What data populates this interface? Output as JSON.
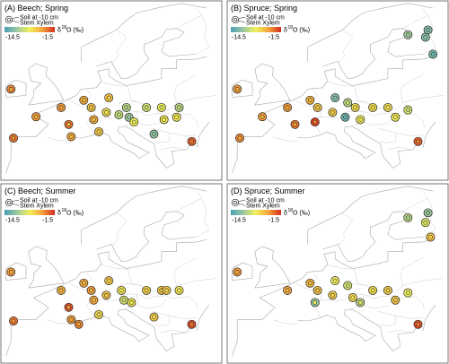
{
  "legend": {
    "soil_label": "Soil at -10 cm",
    "xylem_label": "Stem Xylem",
    "scale_min": "-14.5",
    "scale_max": "-1.5",
    "isotope_symbol": "δ",
    "isotope_mass": "18",
    "isotope_unit": "O (‰)",
    "colormap": [
      "#4a9fb8",
      "#9cc9a0",
      "#f0f05a",
      "#f5a33c",
      "#d62a1e"
    ],
    "value_range": [
      -14.5,
      -1.5
    ]
  },
  "panels": [
    {
      "title": "(A) Beech; Spring",
      "sites": [
        {
          "lon": -9,
          "lat": 53.3,
          "soil": -4,
          "xylem": -5.5
        },
        {
          "lon": -4,
          "lat": 47.6,
          "soil": -4.5,
          "xylem": -5.5
        },
        {
          "lon": -8.5,
          "lat": 43.2,
          "soil": -3.5,
          "xylem": -4.5
        },
        {
          "lon": 1,
          "lat": 49.5,
          "soil": -4.5,
          "xylem": -5
        },
        {
          "lon": 2.5,
          "lat": 46,
          "soil": -3.5,
          "xylem": -6
        },
        {
          "lon": 3,
          "lat": 43.5,
          "soil": -5,
          "xylem": -6
        },
        {
          "lon": 5.5,
          "lat": 51,
          "soil": -5,
          "xylem": -6
        },
        {
          "lon": 7,
          "lat": 49.5,
          "soil": -6,
          "xylem": -6.5
        },
        {
          "lon": 7.5,
          "lat": 47,
          "soil": -5,
          "xylem": -6.5
        },
        {
          "lon": 8.5,
          "lat": 44.5,
          "soil": -6,
          "xylem": -7
        },
        {
          "lon": 10.5,
          "lat": 51.5,
          "soil": -6,
          "xylem": -7
        },
        {
          "lon": 10,
          "lat": 48.5,
          "soil": -7,
          "xylem": -8
        },
        {
          "lon": 14,
          "lat": 49.5,
          "soil": -10,
          "xylem": -10.5
        },
        {
          "lon": 12.5,
          "lat": 48,
          "soil": -9.5,
          "xylem": -10
        },
        {
          "lon": 14.5,
          "lat": 47.5,
          "soil": -11,
          "xylem": -11
        },
        {
          "lon": 15.5,
          "lat": 46.5,
          "soil": -8,
          "xylem": -8.5
        },
        {
          "lon": 18,
          "lat": 49.5,
          "soil": -9,
          "xylem": -9.5
        },
        {
          "lon": 21,
          "lat": 49.5,
          "soil": -8,
          "xylem": -8.5
        },
        {
          "lon": 21.5,
          "lat": 47,
          "soil": -7.5,
          "xylem": -8
        },
        {
          "lon": 24.5,
          "lat": 49.5,
          "soil": -10,
          "xylem": -9.5
        },
        {
          "lon": 24,
          "lat": 47.5,
          "soil": -7.5,
          "xylem": -8
        },
        {
          "lon": 19.5,
          "lat": 44,
          "soil": -11.5,
          "xylem": -11.5
        },
        {
          "lon": 27,
          "lat": 42.5,
          "soil": -3,
          "xylem": -4
        }
      ]
    },
    {
      "title": "(B) Spruce; Spring",
      "sites": [
        {
          "lon": -9,
          "lat": 53.3,
          "soil": -4.5,
          "xylem": -5.5
        },
        {
          "lon": -4,
          "lat": 47.6,
          "soil": -4.5,
          "xylem": -5.5
        },
        {
          "lon": -8.5,
          "lat": 43.2,
          "soil": -4,
          "xylem": -5
        },
        {
          "lon": 1,
          "lat": 49.5,
          "soil": -4.5,
          "xylem": -5
        },
        {
          "lon": 2.5,
          "lat": 46,
          "soil": -3.5,
          "xylem": -5
        },
        {
          "lon": 5.5,
          "lat": 51,
          "soil": -5.5,
          "xylem": -6
        },
        {
          "lon": 7,
          "lat": 49.5,
          "soil": -6,
          "xylem": -6.5
        },
        {
          "lon": 6.5,
          "lat": 46.5,
          "soil": -2,
          "xylem": -4
        },
        {
          "lon": 10,
          "lat": 48.5,
          "soil": -6.5,
          "xylem": -7
        },
        {
          "lon": 10.5,
          "lat": 51.5,
          "soil": -12,
          "xylem": -12
        },
        {
          "lon": 13,
          "lat": 50.5,
          "soil": -10,
          "xylem": -9.5
        },
        {
          "lon": 12.5,
          "lat": 47.5,
          "soil": -13,
          "xylem": -13
        },
        {
          "lon": 14.5,
          "lat": 49.5,
          "soil": -7,
          "xylem": -7.5
        },
        {
          "lon": 15.5,
          "lat": 47,
          "soil": -7.5,
          "xylem": -8
        },
        {
          "lon": 18,
          "lat": 49.5,
          "soil": -7,
          "xylem": -7.5
        },
        {
          "lon": 21,
          "lat": 49.5,
          "soil": -7,
          "xylem": -8
        },
        {
          "lon": 22.5,
          "lat": 47.5,
          "soil": -7.5,
          "xylem": -8
        },
        {
          "lon": 25,
          "lat": 49,
          "soil": -9,
          "xylem": -9.5
        },
        {
          "lon": 27,
          "lat": 42.5,
          "soil": -3,
          "xylem": -4
        },
        {
          "lon": 25,
          "lat": 64.5,
          "soil": -11,
          "xylem": -11
        },
        {
          "lon": 28.5,
          "lat": 64,
          "soil": -12,
          "xylem": -12
        },
        {
          "lon": 29,
          "lat": 65.5,
          "soil": -12,
          "xylem": -12.5
        },
        {
          "lon": 30,
          "lat": 60.5,
          "soil": -12.5,
          "xylem": -13
        }
      ]
    },
    {
      "title": "(C) Beech; Summer",
      "sites": [
        {
          "lon": -9,
          "lat": 53.3,
          "soil": -4.5,
          "xylem": -5.5
        },
        {
          "lon": -8.5,
          "lat": 43.2,
          "soil": -3.5,
          "xylem": -4.5
        },
        {
          "lon": 1,
          "lat": 49.5,
          "soil": -5.5,
          "xylem": -6
        },
        {
          "lon": 2.5,
          "lat": 46,
          "soil": -2.5,
          "xylem": -5
        },
        {
          "lon": 3,
          "lat": 43.5,
          "soil": -4.5,
          "xylem": -5
        },
        {
          "lon": 4.5,
          "lat": 42.5,
          "soil": -4,
          "xylem": -5
        },
        {
          "lon": 5.5,
          "lat": 51,
          "soil": -5,
          "xylem": -6
        },
        {
          "lon": 7,
          "lat": 49.5,
          "soil": -4.5,
          "xylem": -6
        },
        {
          "lon": 7.5,
          "lat": 47.5,
          "soil": -5,
          "xylem": -6
        },
        {
          "lon": 10,
          "lat": 48.5,
          "soil": -6,
          "xylem": -6.5
        },
        {
          "lon": 10.5,
          "lat": 51.5,
          "soil": -6,
          "xylem": -7
        },
        {
          "lon": 8.5,
          "lat": 44.5,
          "soil": -7,
          "xylem": -7.5
        },
        {
          "lon": 13,
          "lat": 49.5,
          "soil": -7.5,
          "xylem": -8
        },
        {
          "lon": 13.5,
          "lat": 47.5,
          "soil": -9,
          "xylem": -9.5
        },
        {
          "lon": 15,
          "lat": 47,
          "soil": -7.5,
          "xylem": -8
        },
        {
          "lon": 18,
          "lat": 49.5,
          "soil": -6.5,
          "xylem": -7
        },
        {
          "lon": 21,
          "lat": 49.5,
          "soil": -6,
          "xylem": -7
        },
        {
          "lon": 22,
          "lat": 49.5,
          "soil": -6.5,
          "xylem": -7
        },
        {
          "lon": 24.5,
          "lat": 49.5,
          "soil": -7.5,
          "xylem": -8
        },
        {
          "lon": 19.5,
          "lat": 44,
          "soil": -6.5,
          "xylem": -7.5
        },
        {
          "lon": 27,
          "lat": 42.5,
          "soil": -2.5,
          "xylem": -4
        }
      ]
    },
    {
      "title": "(D) Spruce; Summer",
      "sites": [
        {
          "lon": -9,
          "lat": 53.3,
          "soil": -4.5,
          "xylem": -5.5
        },
        {
          "lon": 1,
          "lat": 49.5,
          "soil": -5,
          "xylem": -6
        },
        {
          "lon": 5.5,
          "lat": 51,
          "soil": -5.5,
          "xylem": -6
        },
        {
          "lon": 7,
          "lat": 49.5,
          "soil": -6,
          "xylem": -6.5
        },
        {
          "lon": 6.5,
          "lat": 47,
          "soil": -11.5,
          "xylem": -8
        },
        {
          "lon": 10,
          "lat": 48.5,
          "soil": -6.5,
          "xylem": -7
        },
        {
          "lon": 10.5,
          "lat": 51.5,
          "soil": -8,
          "xylem": -8.5
        },
        {
          "lon": 13,
          "lat": 50.5,
          "soil": -9,
          "xylem": -9.5
        },
        {
          "lon": 14,
          "lat": 48,
          "soil": -7,
          "xylem": -7.5
        },
        {
          "lon": 15.5,
          "lat": 47,
          "soil": -10,
          "xylem": -8.5
        },
        {
          "lon": 18,
          "lat": 49.5,
          "soil": -7,
          "xylem": -8
        },
        {
          "lon": 21,
          "lat": 49.5,
          "soil": -6.5,
          "xylem": -7
        },
        {
          "lon": 22.5,
          "lat": 47.5,
          "soil": -6,
          "xylem": -6.5
        },
        {
          "lon": 25,
          "lat": 49,
          "soil": -8,
          "xylem": -8.5
        },
        {
          "lon": 27,
          "lat": 42.5,
          "soil": -2.5,
          "xylem": -4
        },
        {
          "lon": 25,
          "lat": 64.5,
          "soil": -10,
          "xylem": -10.5
        },
        {
          "lon": 28.5,
          "lat": 63.5,
          "soil": -8.5,
          "xylem": -9
        },
        {
          "lon": 29,
          "lat": 65.5,
          "soil": -11,
          "xylem": -11.5
        },
        {
          "lon": 29.5,
          "lat": 60.5,
          "soil": -6,
          "xylem": -7
        }
      ]
    }
  ]
}
